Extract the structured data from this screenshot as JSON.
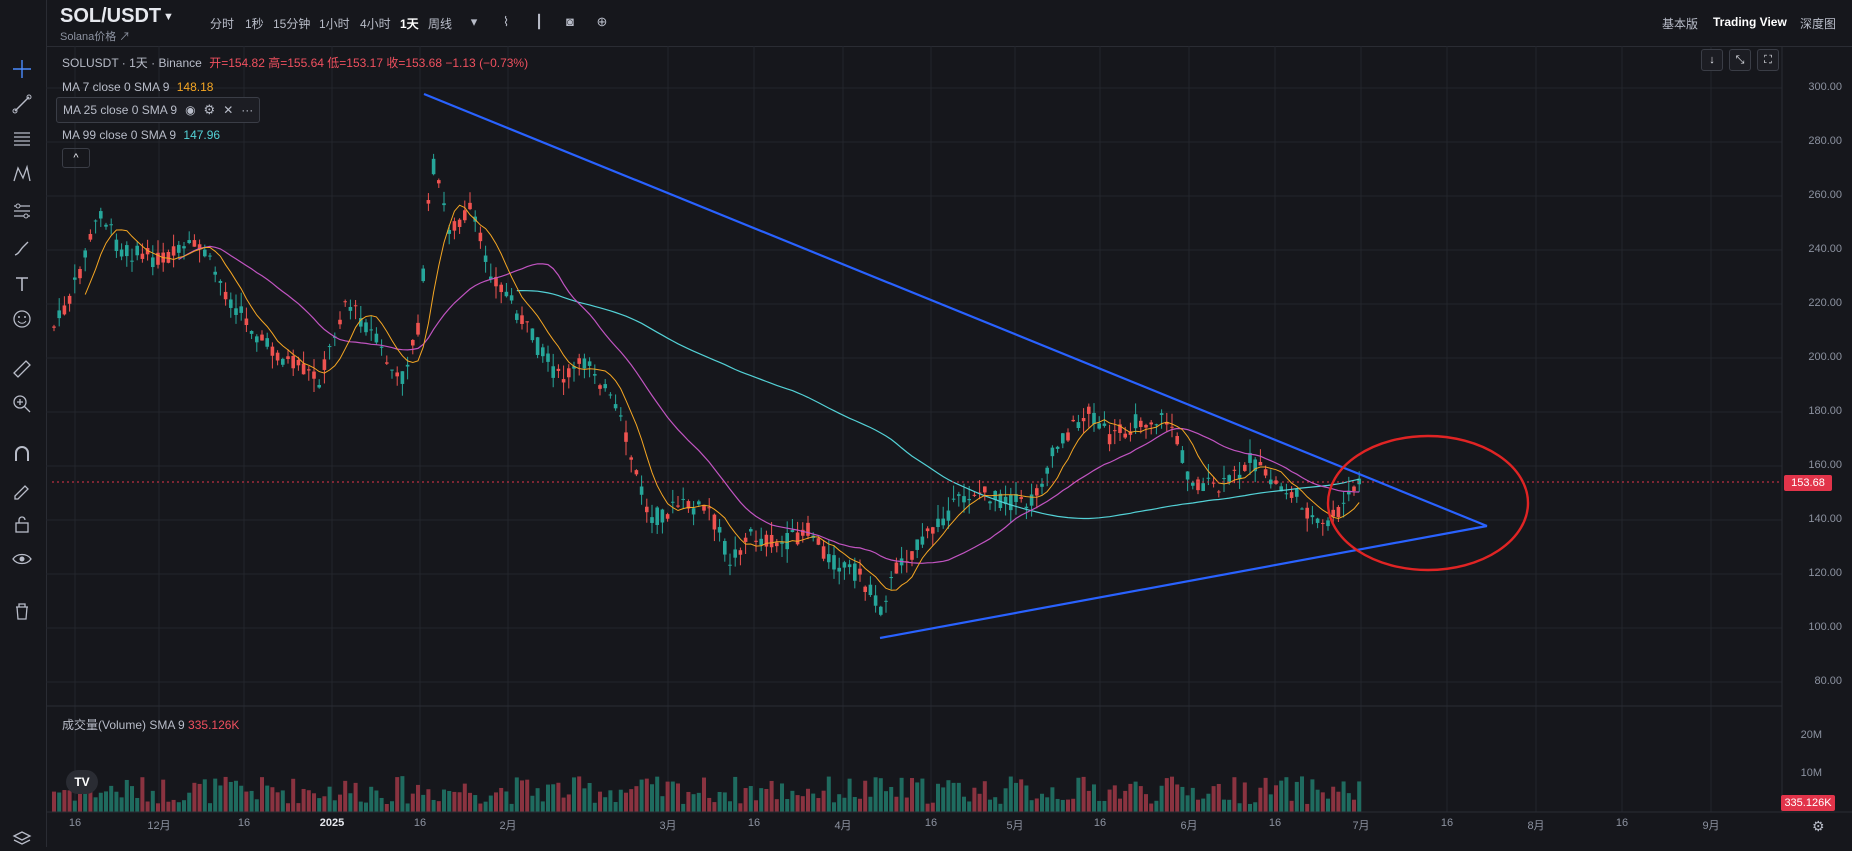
{
  "header": {
    "symbol": "SOL/USDT",
    "subtitle": "Solana价格 ↗",
    "timeframes": [
      "分时",
      "1秒",
      "15分钟",
      "1小时",
      "4小时",
      "1天",
      "周线"
    ],
    "active_timeframe": "1天",
    "views": [
      "基本版",
      "Trading View",
      "深度图"
    ],
    "active_view": "Trading View"
  },
  "legend": {
    "instrument": "SOLUSDT · 1天 · Binance",
    "ohlc": "开=154.82  高=155.64  低=153.17  收=153.68  −1.13 (−0.73%)",
    "ma7_label": "MA 7 close 0 SMA 9",
    "ma7_value": "148.18",
    "ma25_label": "MA 25 close 0 SMA 9",
    "ma99_label": "MA 99 close 0 SMA 9",
    "ma99_value": "147.96",
    "collapse": "^"
  },
  "price_axis": [
    "300.00",
    "280.00",
    "260.00",
    "240.00",
    "220.00",
    "200.00",
    "180.00",
    "160.00",
    "140.00",
    "120.00",
    "100.00",
    "80.00"
  ],
  "last_price": "153.68",
  "volume": {
    "legend": "成交量(Volume) SMA 9",
    "value": "335.126K",
    "axis": [
      "20M",
      "10M"
    ],
    "last": "335.126K"
  },
  "date_axis": [
    "16",
    "12月",
    "16",
    "2025",
    "16",
    "2月",
    "3月",
    "16",
    "4月",
    "16",
    "5月",
    "16",
    "6月",
    "16",
    "7月",
    "16",
    "8月",
    "16",
    "9月"
  ],
  "colors": {
    "up": "#26a69a",
    "down": "#ef5350",
    "ma7": "#f5a623",
    "ma25": "#c154c1",
    "ma99": "#53d1d6",
    "trendline": "#2962ff",
    "circle": "#e02424"
  },
  "icons": {
    "rail": [
      "crosshair-icon",
      "trendline-icon",
      "fib-icon",
      "pattern-icon",
      "projection-icon",
      "brush-icon",
      "text-icon",
      "emoji-icon",
      "ruler-icon",
      "zoom-icon",
      "magnet-icon",
      "lock-draw-icon",
      "lock-icon",
      "eye-icon",
      "trash-icon"
    ]
  }
}
